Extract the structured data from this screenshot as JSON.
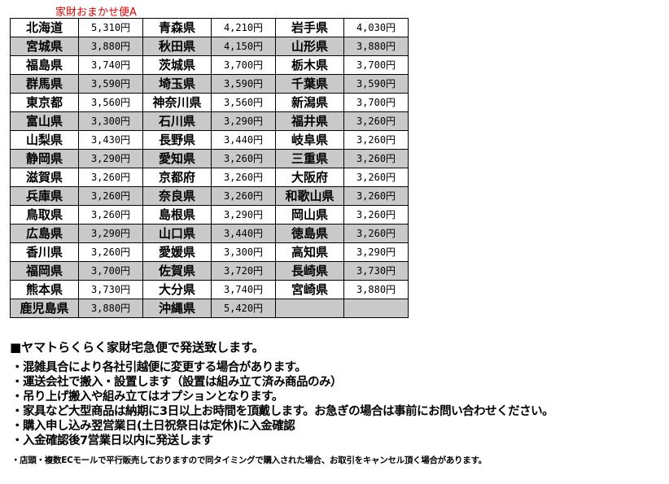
{
  "title": "家財おまかせ便A",
  "rows": [
    [
      [
        "北海道",
        "5,310円"
      ],
      [
        "青森県",
        "4,210円"
      ],
      [
        "岩手県",
        "4,030円"
      ]
    ],
    [
      [
        "宮城県",
        "3,880円"
      ],
      [
        "秋田県",
        "4,150円"
      ],
      [
        "山形県",
        "3,880円"
      ]
    ],
    [
      [
        "福島県",
        "3,740円"
      ],
      [
        "茨城県",
        "3,700円"
      ],
      [
        "栃木県",
        "3,700円"
      ]
    ],
    [
      [
        "群馬県",
        "3,590円"
      ],
      [
        "埼玉県",
        "3,590円"
      ],
      [
        "千葉県",
        "3,590円"
      ]
    ],
    [
      [
        "東京都",
        "3,560円"
      ],
      [
        "神奈川県",
        "3,560円"
      ],
      [
        "新潟県",
        "3,700円"
      ]
    ],
    [
      [
        "富山県",
        "3,300円"
      ],
      [
        "石川県",
        "3,290円"
      ],
      [
        "福井県",
        "3,260円"
      ]
    ],
    [
      [
        "山梨県",
        "3,430円"
      ],
      [
        "長野県",
        "3,440円"
      ],
      [
        "岐阜県",
        "3,260円"
      ]
    ],
    [
      [
        "静岡県",
        "3,290円"
      ],
      [
        "愛知県",
        "3,260円"
      ],
      [
        "三重県",
        "3,260円"
      ]
    ],
    [
      [
        "滋賀県",
        "3,260円"
      ],
      [
        "京都府",
        "3,260円"
      ],
      [
        "大阪府",
        "3,260円"
      ]
    ],
    [
      [
        "兵庫県",
        "3,260円"
      ],
      [
        "奈良県",
        "3,260円"
      ],
      [
        "和歌山県",
        "3,260円"
      ]
    ],
    [
      [
        "鳥取県",
        "3,260円"
      ],
      [
        "島根県",
        "3,290円"
      ],
      [
        "岡山県",
        "3,260円"
      ]
    ],
    [
      [
        "広島県",
        "3,290円"
      ],
      [
        "山口県",
        "3,440円"
      ],
      [
        "徳島県",
        "3,260円"
      ]
    ],
    [
      [
        "香川県",
        "3,260円"
      ],
      [
        "愛媛県",
        "3,300円"
      ],
      [
        "高知県",
        "3,290円"
      ]
    ],
    [
      [
        "福岡県",
        "3,700円"
      ],
      [
        "佐賀県",
        "3,720円"
      ],
      [
        "長崎県",
        "3,730円"
      ]
    ],
    [
      [
        "熊本県",
        "3,730円"
      ],
      [
        "大分県",
        "3,740円"
      ],
      [
        "宮崎県",
        "3,880円"
      ]
    ],
    [
      [
        "鹿児島県",
        "3,880円"
      ],
      [
        "沖縄県",
        "5,420円"
      ],
      [
        "",
        ""
      ]
    ]
  ],
  "heading": "■ヤマトらくらく家財宅急便で発送致します。",
  "notes": [
    "・混雑具合により各社引越便に変更する場合があります。",
    "・運送会社で搬入・設置します（設置は組み立て済み商品のみ）",
    "・吊り上げ搬入や組み立てはオプションとなります。",
    "・家具など大型商品は納期に3日以上お時間を頂戴します。お急ぎの場合は事前にお問い合わせください。",
    "・購入申し込み翌営業日(土日祝祭日は定休)に入金確認",
    "・入金確認後7営業日以内に発送します"
  ],
  "footnote": "・店頭・複数ECモールで平行販売しておりますので同タイミングで購入された場合、お取引をキャンセル頂く場合があります。"
}
